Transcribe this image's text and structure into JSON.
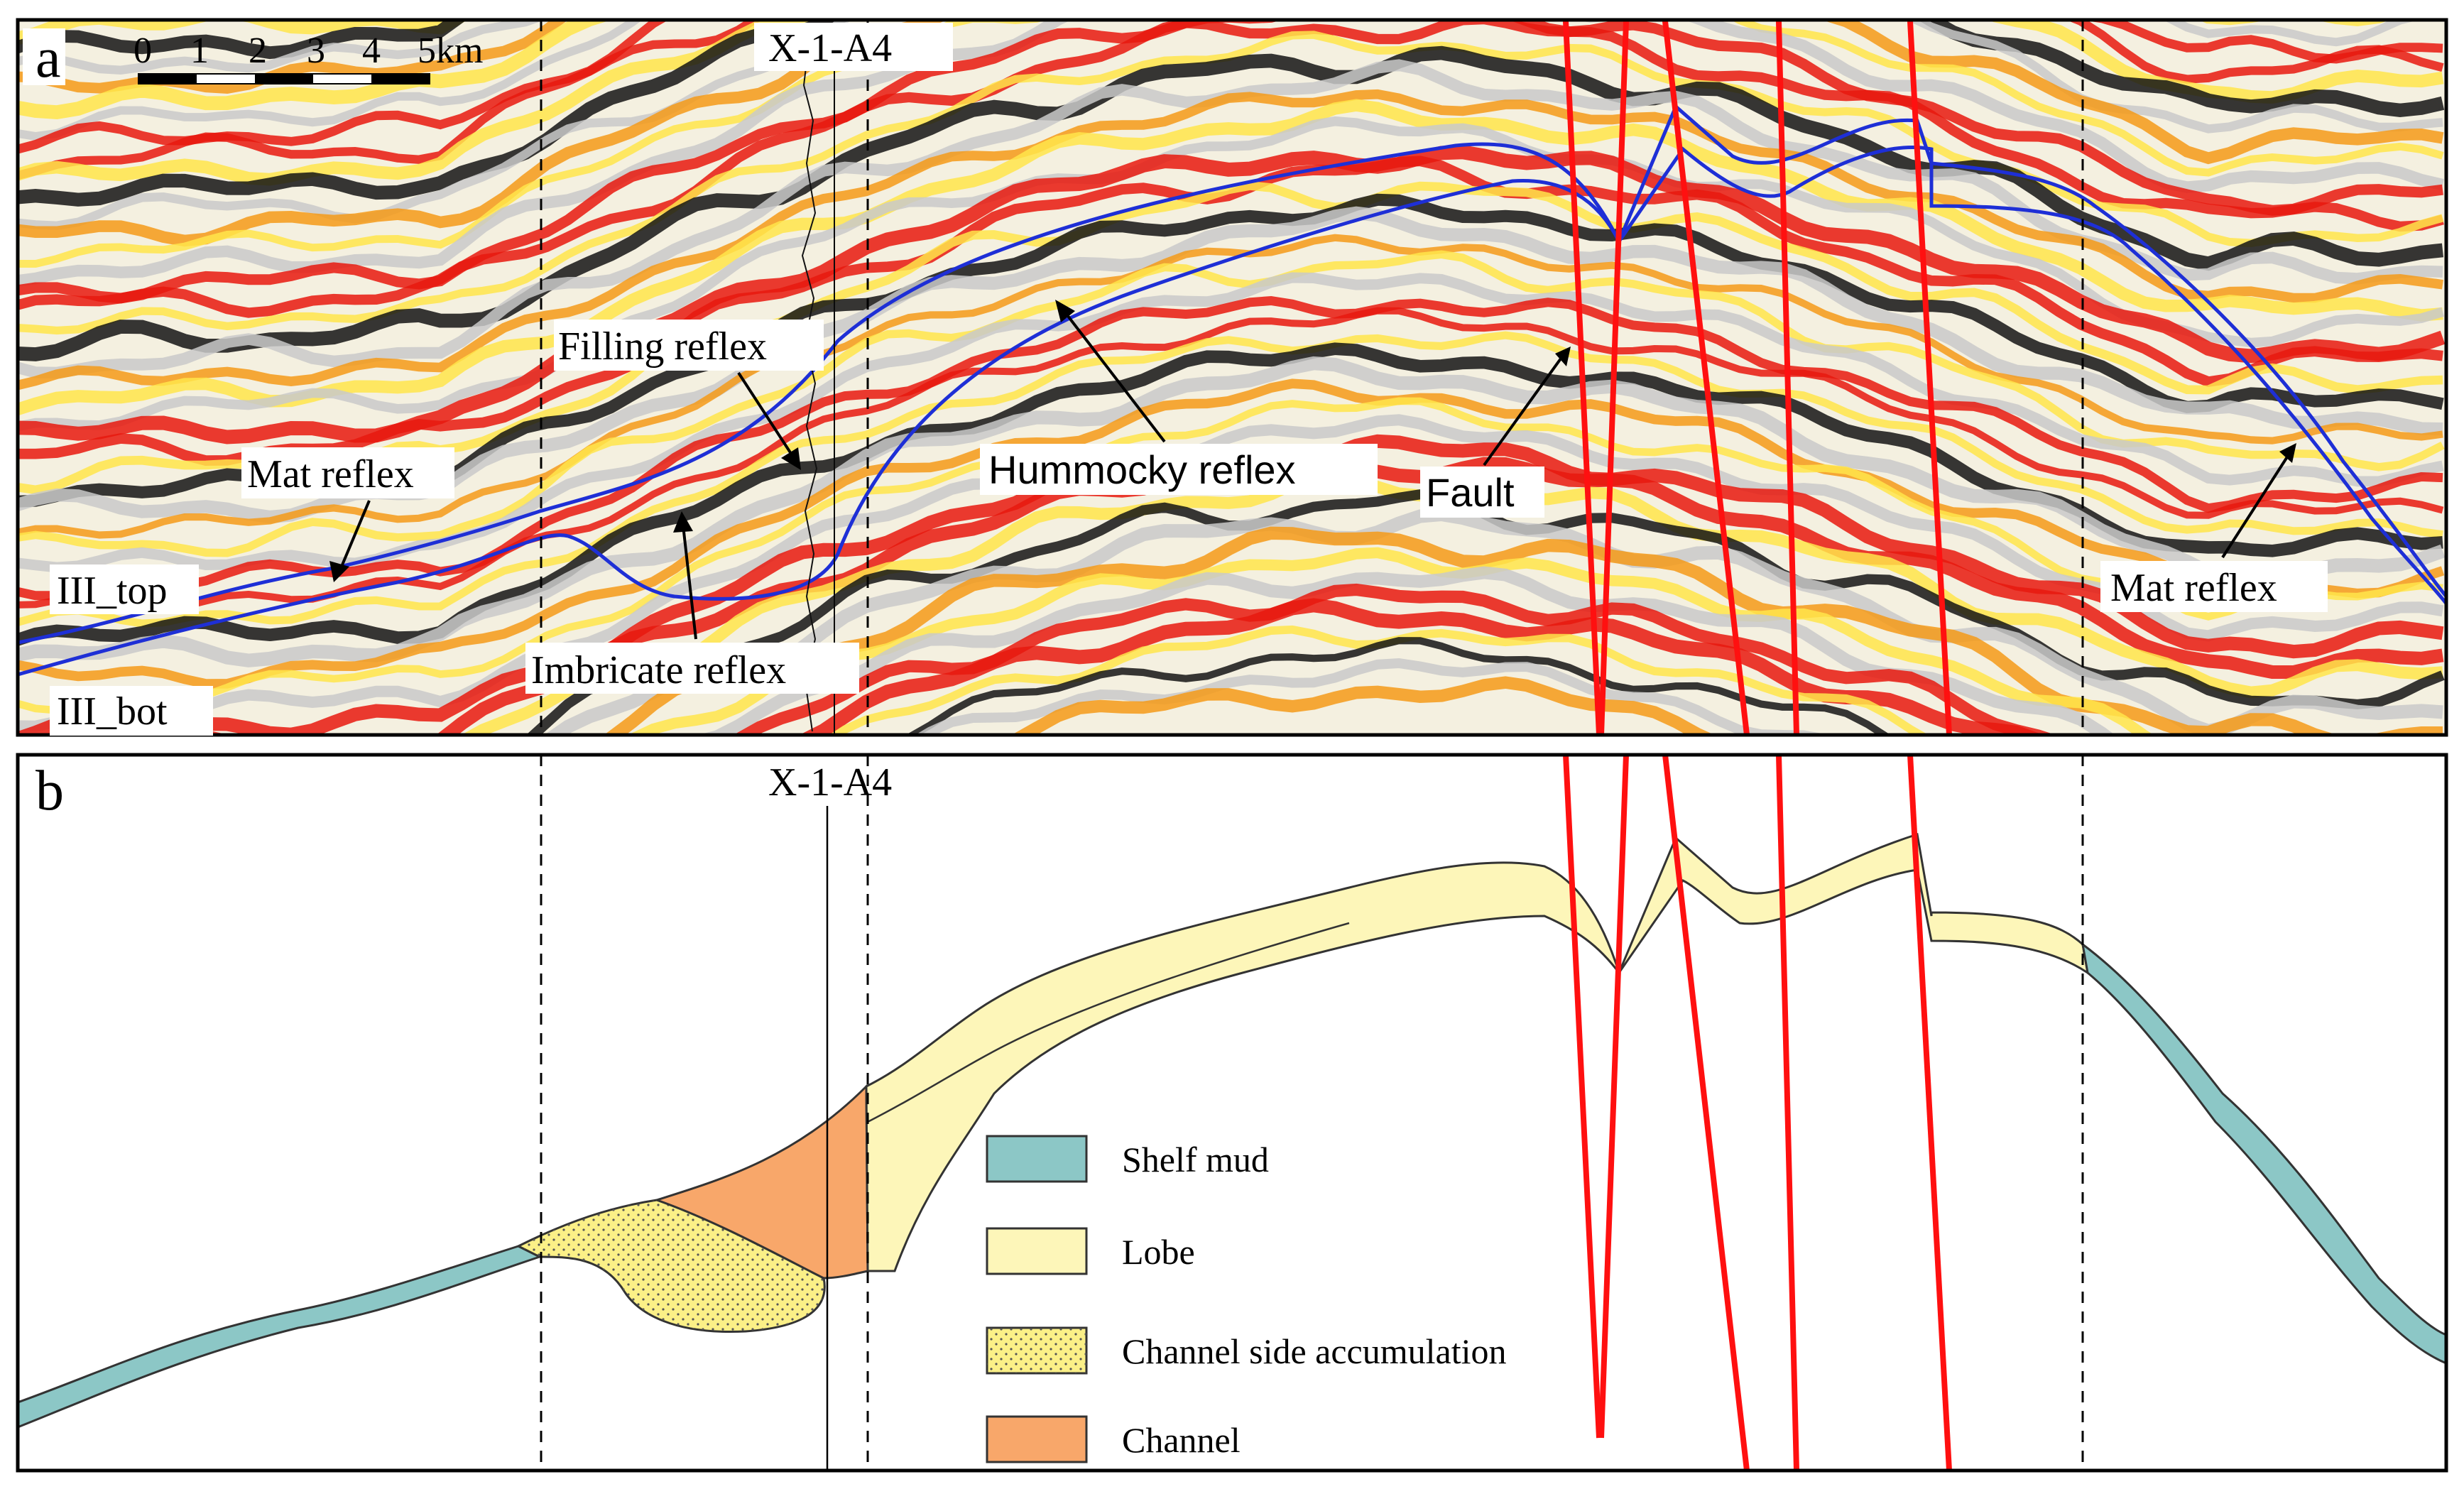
{
  "panel_a": {
    "label": "a",
    "scale_bar": {
      "ticks": [
        "0",
        "1",
        "2",
        "3",
        "4",
        "5km"
      ]
    },
    "well_label": "X-1-A4",
    "horizons": {
      "top": "III_top",
      "bottom": "III_bot"
    },
    "annotations": {
      "mat_reflex_left": "Mat reflex",
      "filling_reflex": "Filling reflex",
      "imbricate_reflex": "Imbricate reflex",
      "hummocky_reflex": "Hummocky reflex",
      "fault": "Fault",
      "mat_reflex_right": "Mat reflex"
    }
  },
  "panel_b": {
    "label": "b",
    "well_label": "X-1-A4",
    "legend": [
      {
        "label": "Shelf mud",
        "color": "#8cc7c6"
      },
      {
        "label": "Lobe",
        "color": "#fdf6b9"
      },
      {
        "label": "Channel side accumulation",
        "color": "#fbf087"
      },
      {
        "label": "Channel",
        "color": "#f8a76a"
      }
    ]
  },
  "colors": {
    "horizon": "#1e2fd6",
    "fault": "#ff1010",
    "red": "#e8190e",
    "orange": "#f59a18",
    "yellow": "#ffe54a",
    "black": "#141414",
    "gray": "#c9c9c9"
  }
}
